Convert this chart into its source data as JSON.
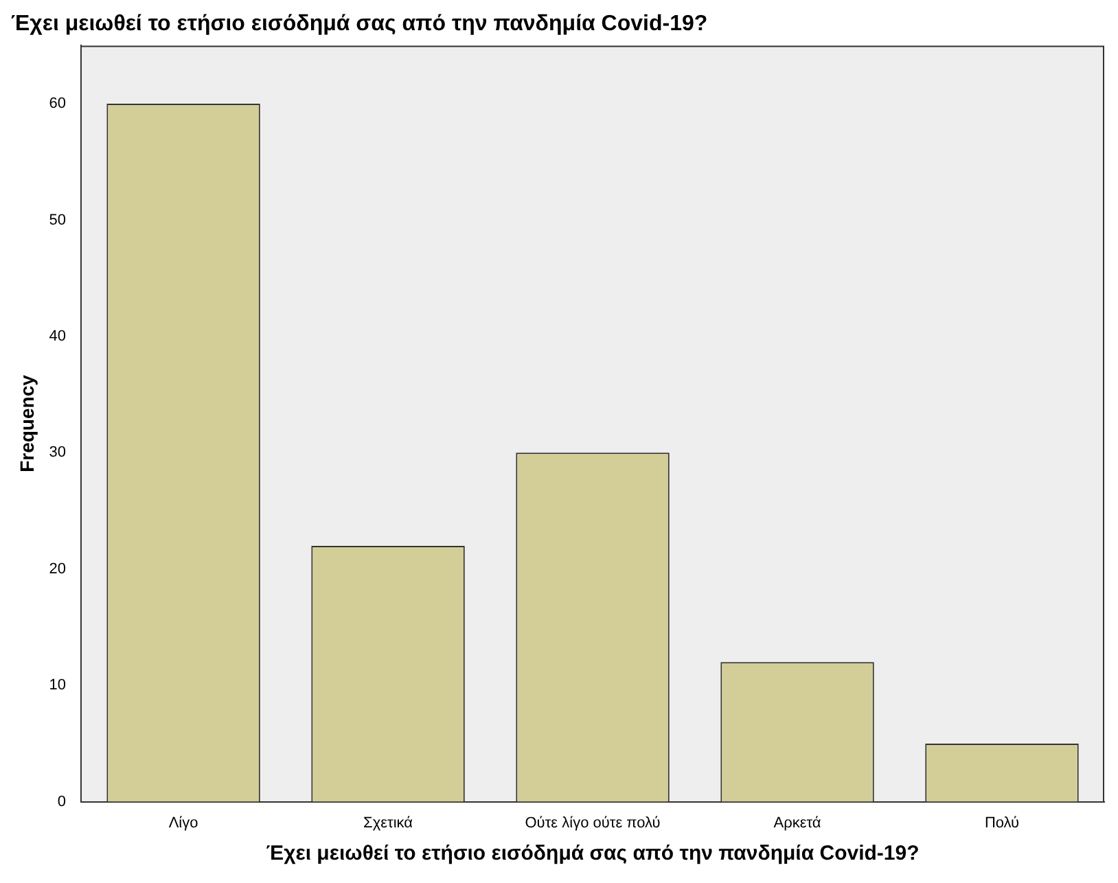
{
  "chart_data": {
    "type": "bar",
    "title": "Έχει μειωθεί το ετήσιο εισόδημά σας από την πανδημία Covid-19?",
    "xlabel": "Έχει μειωθεί το ετήσιο εισόδημά σας από την πανδημία Covid-19?",
    "ylabel": "Frequency",
    "categories": [
      "Λίγο",
      "Σχετικά",
      "Ούτε λίγο ούτε πολύ",
      "Αρκετά",
      "Πολύ"
    ],
    "values": [
      60,
      22,
      30,
      12,
      5
    ],
    "color": "#d3ce97",
    "ylim": [
      0,
      65
    ],
    "yticks": [
      0,
      10,
      20,
      30,
      40,
      50,
      60
    ],
    "grid": false,
    "legend": false
  }
}
